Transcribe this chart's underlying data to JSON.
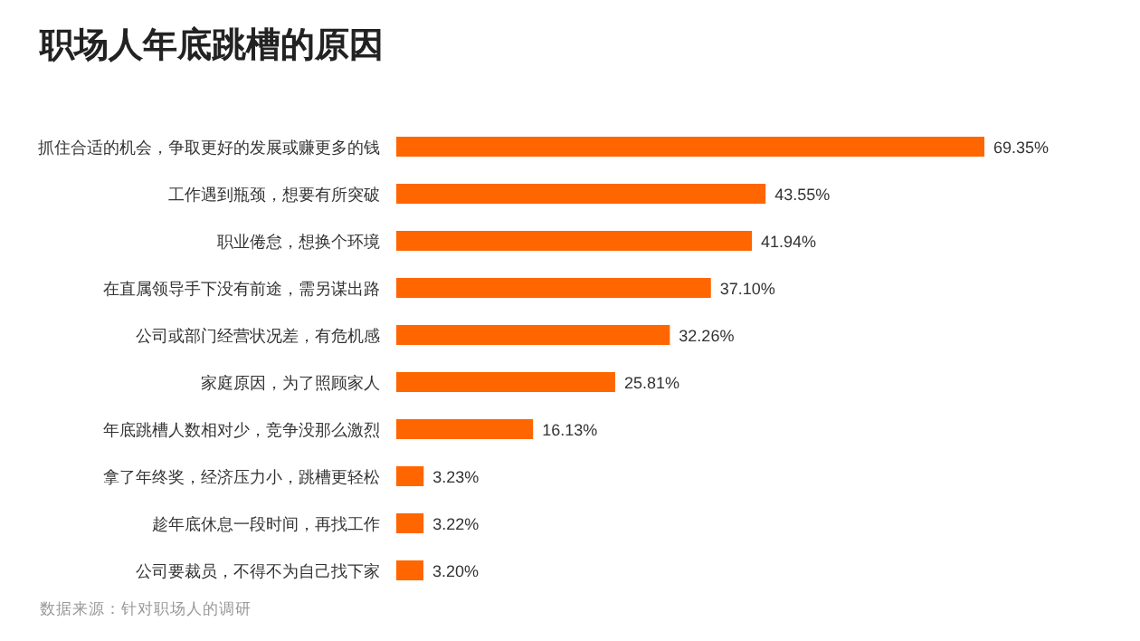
{
  "chart_data": {
    "type": "bar",
    "orientation": "horizontal",
    "title": "职场人年底跳槽的原因",
    "categories": [
      "抓住合适的机会，争取更好的发展或赚更多的钱",
      "工作遇到瓶颈，想要有所突破",
      "职业倦怠，想换个环境",
      "在直属领导手下没有前途，需另谋出路",
      "公司或部门经营状况差，有危机感",
      "家庭原因，为了照顾家人",
      "年底跳槽人数相对少，竞争没那么激烈",
      "拿了年终奖，经济压力小，跳槽更轻松",
      "趁年底休息一段时间，再找工作",
      "公司要裁员，不得不为自己找下家"
    ],
    "values": [
      69.35,
      43.55,
      41.94,
      37.1,
      32.26,
      25.81,
      16.13,
      3.23,
      3.22,
      3.2
    ],
    "value_labels": [
      "69.35%",
      "43.55%",
      "41.94%",
      "37.10%",
      "32.26%",
      "25.81%",
      "16.13%",
      "3.23%",
      "3.22%",
      "3.20%"
    ],
    "color": "#ff6600",
    "annotations": [
      "数据来源：针对职场人的调研"
    ]
  }
}
